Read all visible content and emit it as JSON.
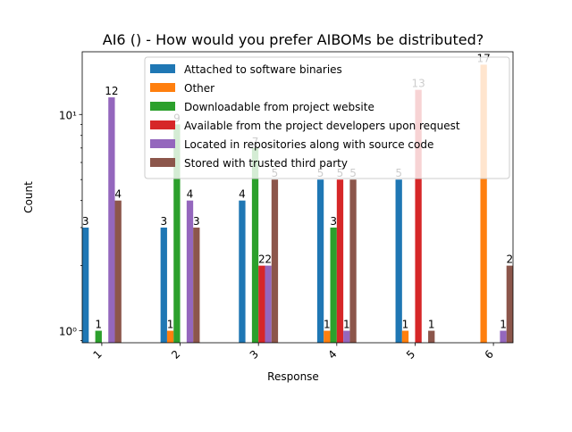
{
  "chart_data": {
    "type": "bar",
    "title": "AI6 () - How would you prefer AIBOMs be distributed?",
    "xlabel": "Response",
    "ylabel": "Count",
    "yscale": "log",
    "ylim": [
      0.88,
      19.5
    ],
    "yticks": [
      {
        "value": 1,
        "label": "10⁰"
      },
      {
        "value": 10,
        "label": "10¹"
      }
    ],
    "categories": [
      "1",
      "2",
      "3",
      "4",
      "5",
      "6"
    ],
    "legend_position": "top-right",
    "series": [
      {
        "name": "Attached to software binaries",
        "color": "#1f77b4",
        "values": [
          3,
          3,
          4,
          5,
          5,
          0
        ]
      },
      {
        "name": "Other",
        "color": "#ff7f0e",
        "values": [
          0,
          1,
          0,
          1,
          1,
          17
        ]
      },
      {
        "name": "Downloadable from project website",
        "color": "#2ca02c",
        "values": [
          1,
          9,
          7,
          3,
          0,
          0
        ]
      },
      {
        "name": "Available from the project developers upon request",
        "color": "#d62728",
        "values": [
          0,
          0,
          2,
          5,
          13,
          0
        ]
      },
      {
        "name": "Located in repositories along with source code",
        "color": "#9467bd",
        "values": [
          12,
          4,
          2,
          1,
          0,
          1
        ]
      },
      {
        "name": "Stored with trusted third party",
        "color": "#8c564b",
        "values": [
          4,
          3,
          5,
          5,
          1,
          2
        ]
      }
    ]
  }
}
